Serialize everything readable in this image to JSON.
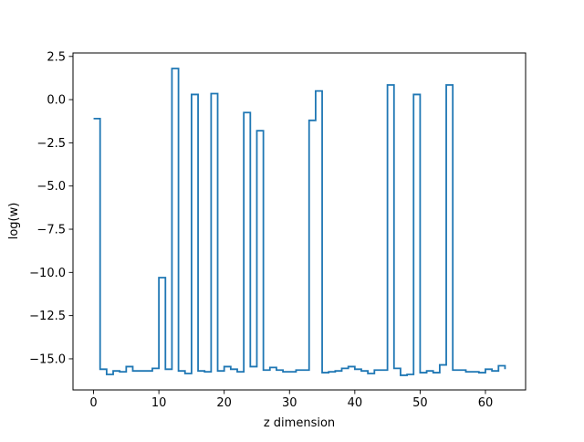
{
  "colors": {
    "line": "#1f77b4",
    "axes": "#000000",
    "background": "#ffffff"
  },
  "chart_data": {
    "type": "line",
    "drawstyle": "steps-post",
    "title": "",
    "xlabel": "z dimension",
    "ylabel": "log(w)",
    "xlim": [
      -3.15,
      66.15
    ],
    "ylim": [
      -16.8,
      2.7
    ],
    "xticks": [
      0,
      10,
      20,
      30,
      40,
      50,
      60
    ],
    "xtick_labels": [
      "0",
      "10",
      "20",
      "30",
      "40",
      "50",
      "60"
    ],
    "yticks": [
      2.5,
      0.0,
      -2.5,
      -5.0,
      -7.5,
      -10.0,
      -12.5,
      -15.0
    ],
    "ytick_labels": [
      "2.5",
      "0.0",
      "−2.5",
      "−5.0",
      "−7.5",
      "−10.0",
      "−12.5",
      "−15.0"
    ],
    "grid": false,
    "legend": false,
    "series": [
      {
        "x": [
          0,
          1,
          2,
          3,
          4,
          5,
          6,
          7,
          8,
          9,
          10,
          11,
          12,
          13,
          14,
          15,
          16,
          17,
          18,
          19,
          20,
          21,
          22,
          23,
          24,
          25,
          26,
          27,
          28,
          29,
          30,
          31,
          32,
          33,
          34,
          35,
          36,
          37,
          38,
          39,
          40,
          41,
          42,
          43,
          44,
          45,
          46,
          47,
          48,
          49,
          50,
          51,
          52,
          53,
          54,
          55,
          56,
          57,
          58,
          59,
          60,
          61,
          62,
          63
        ],
        "values": [
          -1.1,
          -15.6,
          -15.9,
          -15.7,
          -15.75,
          -15.45,
          -15.7,
          -15.7,
          -15.7,
          -15.55,
          -10.3,
          -15.6,
          1.8,
          -15.7,
          -15.85,
          0.3,
          -15.7,
          -15.75,
          0.35,
          -15.7,
          -15.45,
          -15.6,
          -15.75,
          -0.75,
          -15.45,
          -1.8,
          -15.65,
          -15.5,
          -15.65,
          -15.75,
          -15.75,
          -15.65,
          -15.65,
          -1.2,
          0.5,
          -15.8,
          -15.75,
          -15.7,
          -15.55,
          -15.45,
          -15.6,
          -15.7,
          -15.85,
          -15.65,
          -15.65,
          0.85,
          -15.55,
          -15.95,
          -15.9,
          0.3,
          -15.8,
          -15.7,
          -15.8,
          -15.35,
          0.85,
          -15.65,
          -15.65,
          -15.75,
          -15.75,
          -15.8,
          -15.6,
          -15.7,
          -15.4,
          -15.6
        ]
      }
    ]
  }
}
